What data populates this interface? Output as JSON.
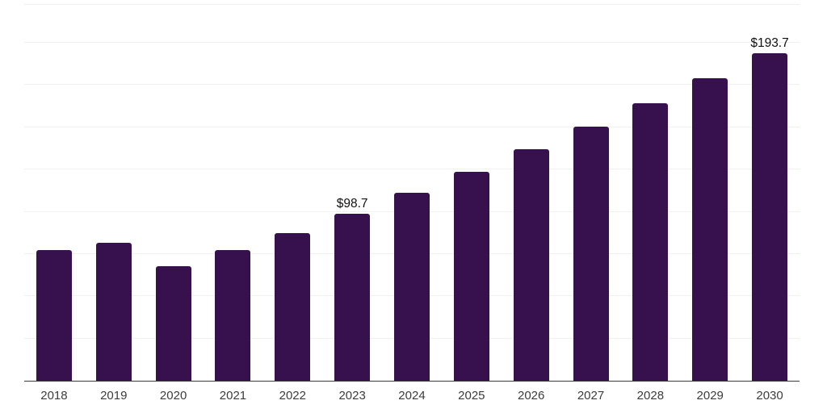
{
  "chart_data": {
    "type": "bar",
    "title": "",
    "xlabel": "",
    "ylabel": "",
    "categories": [
      "2018",
      "2019",
      "2020",
      "2021",
      "2022",
      "2023",
      "2024",
      "2025",
      "2026",
      "2027",
      "2028",
      "2029",
      "2030"
    ],
    "values": [
      77.6,
      81.9,
      67.6,
      77.6,
      87.2,
      98.7,
      111.2,
      123.6,
      136.9,
      150.6,
      164.4,
      179.3,
      193.7
    ],
    "data_labels": [
      null,
      null,
      null,
      null,
      null,
      "$98.7",
      null,
      null,
      null,
      null,
      null,
      null,
      "$193.7"
    ],
    "value_prefix": "$",
    "ylim": [
      0,
      222.5
    ],
    "grid": true,
    "grid_interval": 25,
    "legend": false,
    "y_axis_labels_visible": false
  },
  "colors": {
    "background": "#ffffff",
    "bar": "#36114e",
    "gridline": "#f0f0f0",
    "axis_line": "#3a3a3a",
    "data_label_text": "#111111",
    "tick_text": "#3c3c3c"
  }
}
